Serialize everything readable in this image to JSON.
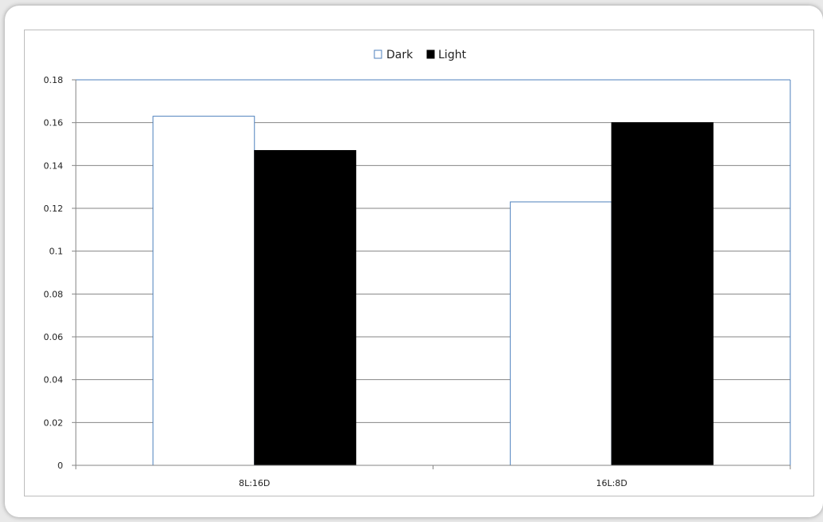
{
  "chart_data": {
    "type": "bar",
    "categories": [
      "8L:16D",
      "16L:8D"
    ],
    "series": [
      {
        "name": "Dark",
        "values": [
          0.163,
          0.123
        ],
        "color": "#ffffff",
        "stroke": "#4f81bd"
      },
      {
        "name": "Light",
        "values": [
          0.147,
          0.16
        ],
        "color": "#000000",
        "stroke": "#000000"
      }
    ],
    "title": "",
    "xlabel": "",
    "ylabel": "",
    "ylim": [
      0,
      0.18
    ],
    "yticks": [
      "0",
      "0.02",
      "0.04",
      "0.06",
      "0.08",
      "0.1",
      "0.12",
      "0.14",
      "0.16",
      "0.18"
    ],
    "grid": true,
    "legend_position": "top"
  },
  "colors": {
    "gridline": "#868686",
    "plot_border": "#4f81bd"
  }
}
